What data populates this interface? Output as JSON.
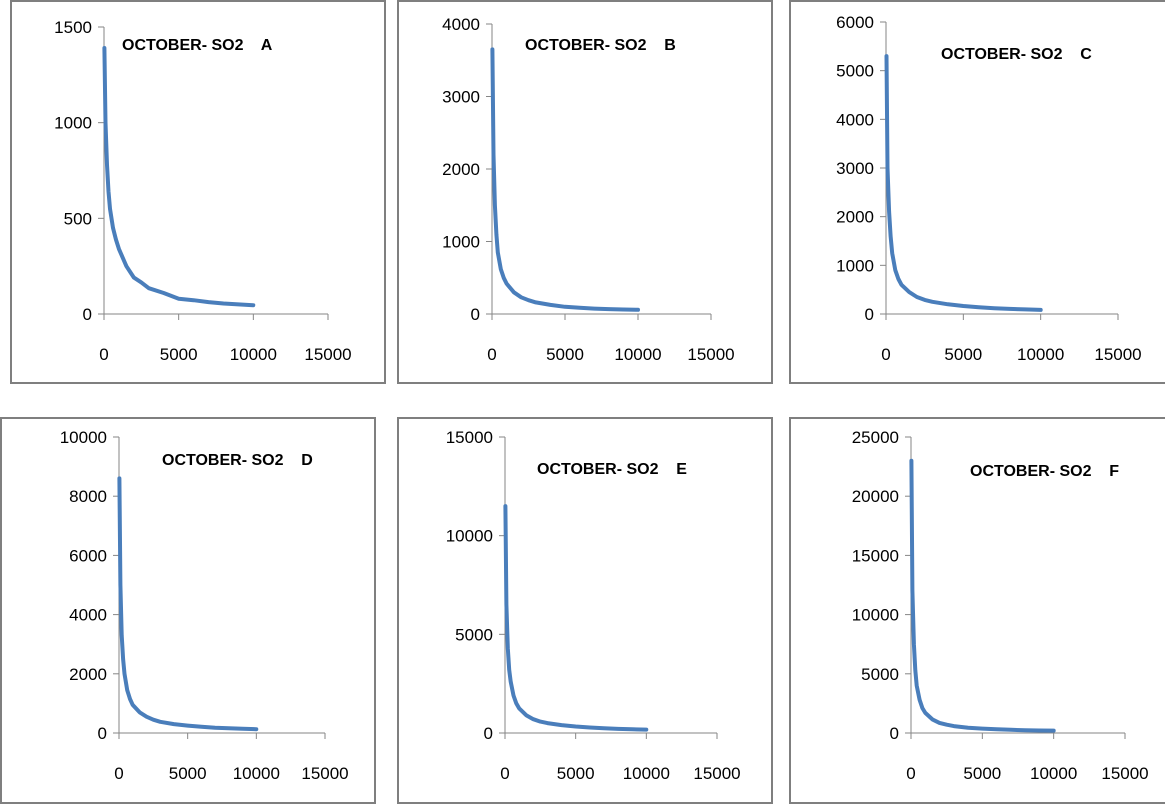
{
  "chart_data": [
    {
      "type": "line",
      "title": "OCTOBER- SO2    A",
      "xlim": [
        0,
        15000
      ],
      "xticks": [
        0,
        5000,
        10000,
        15000
      ],
      "ylim": [
        0,
        1500
      ],
      "yticks": [
        0,
        500,
        1000,
        1500
      ],
      "series": [
        {
          "color": "#4a7ebb",
          "x": [
            30,
            100,
            200,
            300,
            400,
            600,
            800,
            1000,
            1500,
            2000,
            2500,
            3000,
            4000,
            5000,
            6000,
            7000,
            8000,
            9000,
            10000
          ],
          "y": [
            1390,
            1000,
            780,
            640,
            550,
            450,
            390,
            340,
            250,
            190,
            165,
            135,
            110,
            80,
            72,
            62,
            55,
            50,
            46
          ]
        }
      ]
    },
    {
      "type": "line",
      "title": "OCTOBER- SO2    B",
      "xlim": [
        0,
        15000
      ],
      "xticks": [
        0,
        5000,
        10000,
        15000
      ],
      "ylim": [
        0,
        4000
      ],
      "yticks": [
        0,
        1000,
        2000,
        3000,
        4000
      ],
      "series": [
        {
          "color": "#4a7ebb",
          "x": [
            30,
            100,
            200,
            300,
            400,
            600,
            800,
            1000,
            1500,
            2000,
            2500,
            3000,
            4000,
            5000,
            6000,
            7000,
            8000,
            9000,
            10000
          ],
          "y": [
            3650,
            2200,
            1500,
            1100,
            850,
            620,
            500,
            420,
            300,
            230,
            190,
            160,
            125,
            100,
            85,
            75,
            68,
            62,
            58
          ]
        }
      ]
    },
    {
      "type": "line",
      "title": "OCTOBER- SO2    C",
      "xlim": [
        0,
        15000
      ],
      "xticks": [
        0,
        5000,
        10000,
        15000
      ],
      "ylim": [
        0,
        6000
      ],
      "yticks": [
        0,
        1000,
        2000,
        3000,
        4000,
        5000,
        6000
      ],
      "series": [
        {
          "color": "#4a7ebb",
          "x": [
            30,
            100,
            200,
            300,
            400,
            600,
            800,
            1000,
            1500,
            2000,
            2500,
            3000,
            4000,
            5000,
            6000,
            7000,
            8000,
            9000,
            10000
          ],
          "y": [
            5300,
            3000,
            2100,
            1600,
            1250,
            900,
            720,
            600,
            450,
            350,
            290,
            250,
            200,
            165,
            140,
            120,
            105,
            95,
            85
          ]
        }
      ]
    },
    {
      "type": "line",
      "title": "OCTOBER- SO2    D",
      "xlim": [
        0,
        15000
      ],
      "xticks": [
        0,
        5000,
        10000,
        15000
      ],
      "ylim": [
        0,
        10000
      ],
      "yticks": [
        0,
        2000,
        4000,
        6000,
        8000,
        10000
      ],
      "series": [
        {
          "color": "#4a7ebb",
          "x": [
            30,
            100,
            200,
            300,
            400,
            600,
            800,
            1000,
            1500,
            2000,
            2500,
            3000,
            4000,
            5000,
            6000,
            7000,
            8000,
            9000,
            10000
          ],
          "y": [
            8600,
            5000,
            3300,
            2500,
            2000,
            1450,
            1150,
            950,
            700,
            550,
            450,
            380,
            300,
            250,
            210,
            180,
            160,
            145,
            130
          ]
        }
      ]
    },
    {
      "type": "line",
      "title": "OCTOBER- SO2    E",
      "xlim": [
        0,
        15000
      ],
      "xticks": [
        0,
        5000,
        10000,
        15000
      ],
      "ylim": [
        0,
        15000
      ],
      "yticks": [
        0,
        5000,
        10000,
        15000
      ],
      "series": [
        {
          "color": "#4a7ebb",
          "x": [
            30,
            100,
            200,
            300,
            400,
            600,
            800,
            1000,
            1500,
            2000,
            2500,
            3000,
            4000,
            5000,
            6000,
            7000,
            8000,
            9000,
            10000
          ],
          "y": [
            11500,
            6500,
            4300,
            3200,
            2600,
            1900,
            1500,
            1250,
            900,
            700,
            580,
            500,
            400,
            330,
            280,
            240,
            210,
            190,
            170
          ]
        }
      ]
    },
    {
      "type": "line",
      "title": "OCTOBER- SO2    F",
      "xlim": [
        0,
        15000
      ],
      "xticks": [
        0,
        5000,
        10000,
        15000
      ],
      "ylim": [
        0,
        25000
      ],
      "yticks": [
        0,
        5000,
        10000,
        15000,
        20000,
        25000
      ],
      "series": [
        {
          "color": "#4a7ebb",
          "x": [
            30,
            100,
            200,
            300,
            400,
            600,
            800,
            1000,
            1500,
            2000,
            2500,
            3000,
            4000,
            5000,
            6000,
            7000,
            8000,
            9000,
            10000
          ],
          "y": [
            23000,
            12000,
            7500,
            5300,
            4000,
            2800,
            2100,
            1700,
            1150,
            850,
            700,
            580,
            450,
            370,
            310,
            270,
            240,
            215,
            200
          ]
        }
      ]
    }
  ]
}
